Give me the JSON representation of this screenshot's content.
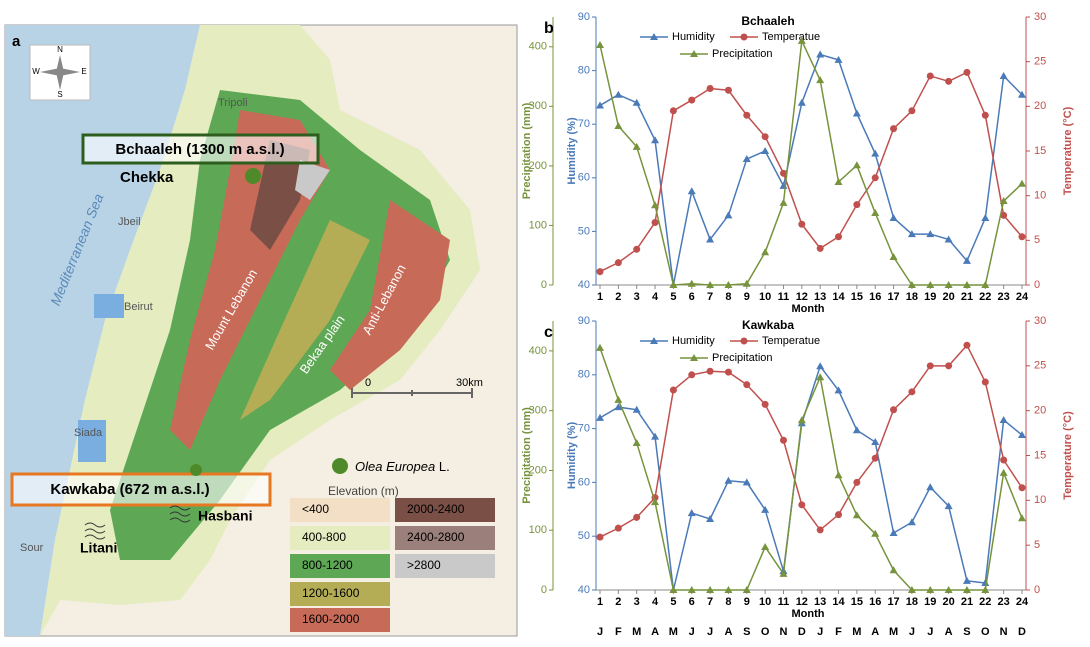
{
  "map": {
    "panel": "a",
    "compass": [
      "N",
      "E",
      "S",
      "W"
    ],
    "places": {
      "tripoli": "Tripoli",
      "chekka": "Chekka",
      "jbeil": "Jbeil",
      "sea": "Mediterranean Sea",
      "beirut": "Beirut",
      "siada": "Siada",
      "sour": "Sour",
      "litani": "Litani",
      "hasbani": "Hasbani"
    },
    "regions": [
      "Mount Lebanon",
      "Bekaa plain",
      "Anti-Lebanon"
    ],
    "sites": [
      "Bchaaleh  (1300 m a.s.l.)",
      "Kawkaba  (672 m a.s.l.)"
    ],
    "scale": [
      "0",
      "30km"
    ],
    "species": "Olea Europea",
    "species_suffix": "L.",
    "legend_title": "Elevation (m)",
    "legend": [
      {
        "label": "<400",
        "color": "#f3dfc6"
      },
      {
        "label": "400-800",
        "color": "#e4ecc0"
      },
      {
        "label": "800-1200",
        "color": "#5ea855"
      },
      {
        "label": "1200-1600",
        "color": "#b5ad55"
      },
      {
        "label": "1600-2000",
        "color": "#c86a58"
      },
      {
        "label": "2000-2400",
        "color": "#7a5046"
      },
      {
        "label": "2400-2800",
        "color": "#9a7f7a"
      },
      {
        "label": ">2800",
        "color": "#c9c9c9"
      }
    ]
  },
  "chart_data": [
    {
      "type": "line",
      "panel": "b",
      "title": "Bchaaleh",
      "x_label": "Month",
      "y_label": "Precipitation (mm)",
      "y3_label": "Humidity (%)",
      "y2_label": "Temperature (°C)",
      "x": [
        1,
        2,
        3,
        4,
        5,
        6,
        7,
        8,
        9,
        10,
        11,
        12,
        13,
        14,
        15,
        16,
        17,
        18,
        19,
        20,
        21,
        22,
        23,
        24
      ],
      "xlim": [
        1,
        24
      ],
      "xticks": [
        1,
        2,
        3,
        4,
        5,
        6,
        7,
        8,
        9,
        10,
        11,
        12,
        13,
        14,
        15,
        16,
        17,
        18,
        19,
        20,
        21,
        22,
        23,
        24
      ],
      "ylim": [
        0,
        450
      ],
      "yticks": [
        0,
        100,
        200,
        300,
        400
      ],
      "y2lim": [
        0,
        30
      ],
      "y2ticks": [
        0,
        5,
        10,
        15,
        20,
        25,
        30
      ],
      "y3lim": [
        40,
        90
      ],
      "y3ticks": [
        40,
        50,
        60,
        70,
        80,
        90
      ],
      "series": [
        {
          "name": "Humidity",
          "color": "#4a7ab8",
          "axis": "y3",
          "marker": "triangle",
          "values": [
            73.5,
            75.5,
            74,
            67,
            40,
            57.5,
            48.5,
            53,
            63.5,
            65,
            58.5,
            74,
            83,
            82,
            72,
            64.5,
            52.5,
            49.5,
            49.5,
            48.5,
            44.5,
            52.5,
            79,
            75.5
          ]
        },
        {
          "name": "Temperatue",
          "color": "#c0504d",
          "axis": "y2",
          "marker": "circle",
          "values": [
            1.5,
            2.5,
            4,
            7,
            19.5,
            20.7,
            22,
            21.8,
            19,
            16.6,
            12.5,
            6.8,
            4.1,
            5.4,
            9,
            12,
            17.5,
            19.5,
            23.4,
            22.8,
            23.8,
            19,
            7.8,
            5.4
          ]
        },
        {
          "name": "Precipitation",
          "color": "#77933c",
          "axis": "y",
          "marker": "triangle",
          "values": [
            403,
            267,
            232,
            134,
            0,
            2,
            0,
            0,
            2,
            55,
            138,
            410,
            344,
            173,
            201,
            121,
            47,
            0,
            0,
            0,
            0,
            0,
            141,
            170
          ]
        }
      ]
    },
    {
      "type": "line",
      "panel": "c",
      "title": "Kawkaba",
      "x_label": "Month",
      "y_label": "Precipitation (mm)",
      "y3_label": "Humidity (%)",
      "y2_label": "Temperature (°C)",
      "x": [
        1,
        2,
        3,
        4,
        5,
        6,
        7,
        8,
        9,
        10,
        11,
        12,
        13,
        14,
        15,
        16,
        17,
        18,
        19,
        20,
        21,
        22,
        23,
        24
      ],
      "xlim": [
        1,
        24
      ],
      "xticks": [
        1,
        2,
        3,
        4,
        5,
        6,
        7,
        8,
        9,
        10,
        11,
        12,
        13,
        14,
        15,
        16,
        17,
        18,
        19,
        20,
        21,
        22,
        23,
        24
      ],
      "month_labels": [
        "J",
        "F",
        "M",
        "A",
        "M",
        "J",
        "J",
        "A",
        "S",
        "O",
        "N",
        "D",
        "J",
        "F",
        "M",
        "A",
        "M",
        "J",
        "J",
        "A",
        "S",
        "O",
        "N",
        "D"
      ],
      "ylim": [
        0,
        450
      ],
      "yticks": [
        0,
        100,
        200,
        300,
        400
      ],
      "y2lim": [
        0,
        30
      ],
      "y2ticks": [
        0,
        5,
        10,
        15,
        20,
        25,
        30
      ],
      "y3lim": [
        40,
        90
      ],
      "y3ticks": [
        40,
        50,
        60,
        70,
        80,
        90
      ],
      "series": [
        {
          "name": "Humidity",
          "color": "#4a7ab8",
          "axis": "y3",
          "marker": "triangle",
          "values": [
            72,
            74,
            73.5,
            68.5,
            40,
            54.3,
            53.2,
            60.3,
            60,
            54.9,
            43.5,
            71,
            81.6,
            77.1,
            69.7,
            67.5,
            50.6,
            52.6,
            59.1,
            55.6,
            41.7,
            41.3,
            71.6,
            68.8
          ]
        },
        {
          "name": "Temperatue",
          "color": "#c0504d",
          "axis": "y2",
          "marker": "circle",
          "values": [
            5.9,
            6.9,
            8.1,
            10.3,
            22.3,
            24,
            24.4,
            24.3,
            22.9,
            20.7,
            16.7,
            9.5,
            6.7,
            8.4,
            12,
            14.7,
            20.1,
            22.1,
            25,
            25,
            27.3,
            23.2,
            14.5,
            11.4
          ]
        },
        {
          "name": "Precipitation",
          "color": "#77933c",
          "axis": "y",
          "marker": "triangle",
          "values": [
            405,
            318,
            246,
            147,
            0,
            0,
            0,
            0,
            0,
            72,
            27,
            284,
            356,
            192,
            125,
            94,
            33,
            0,
            0,
            0,
            0,
            0,
            196,
            120
          ]
        }
      ]
    }
  ]
}
